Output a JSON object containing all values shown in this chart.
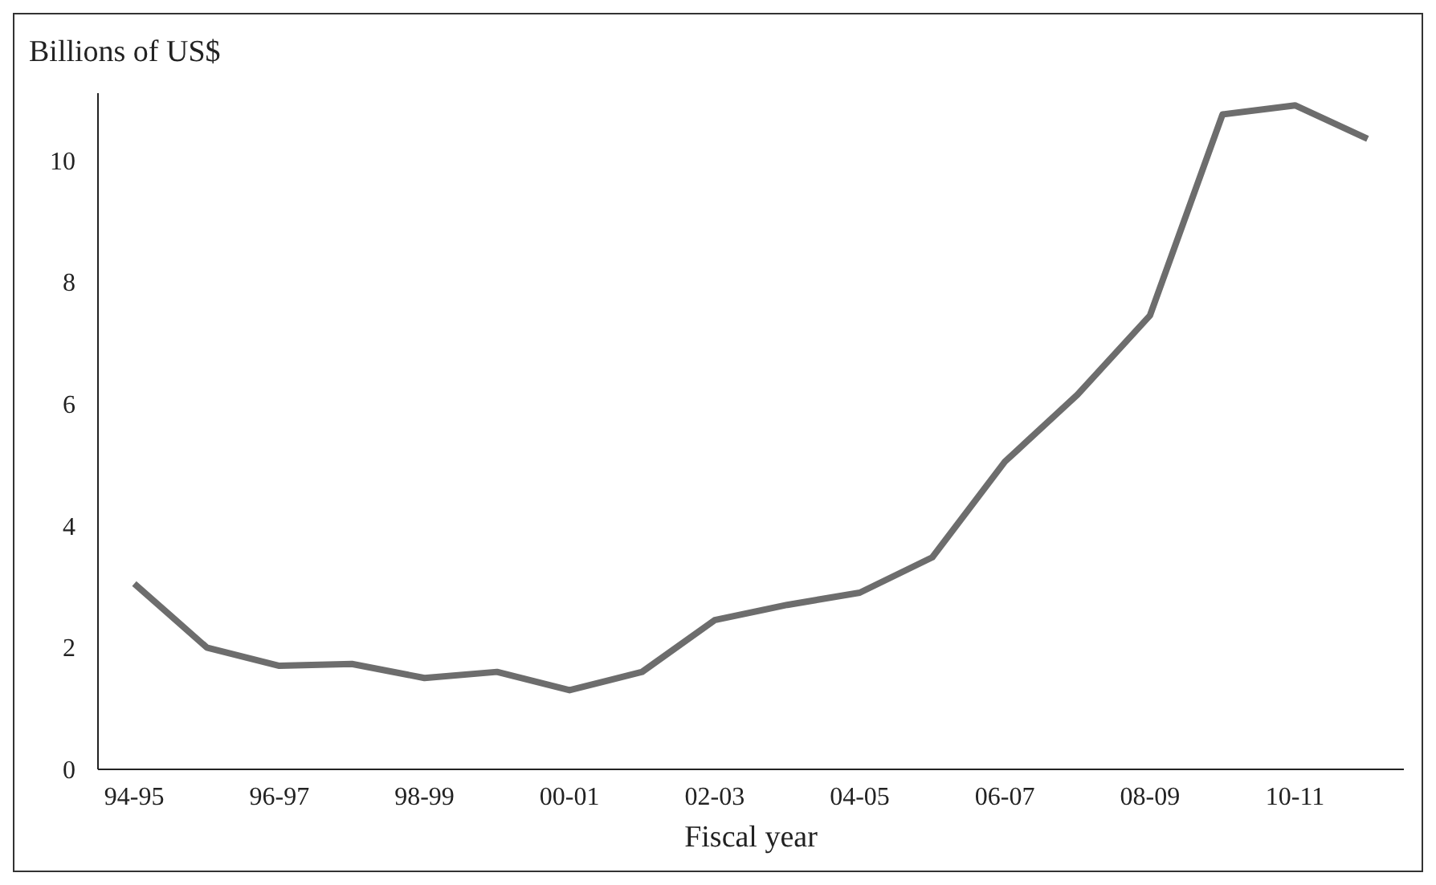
{
  "chart_data": {
    "type": "line",
    "ylabel": "Billions of US$",
    "xlabel": "Fiscal year",
    "categories": [
      "94-95",
      null,
      "96-97",
      null,
      "98-99",
      null,
      "00-01",
      null,
      "02-03",
      null,
      "04-05",
      null,
      "06-07",
      null,
      "08-09",
      null,
      "10-11",
      null
    ],
    "series": [
      {
        "color": "#6d6d6d",
        "values": [
          3.05,
          2.0,
          1.7,
          1.73,
          1.5,
          1.6,
          1.3,
          1.6,
          2.45,
          2.7,
          2.9,
          3.48,
          5.05,
          6.15,
          7.45,
          10.75,
          10.9,
          10.35
        ]
      }
    ],
    "ylim": [
      0,
      11.1
    ],
    "yticks": [
      0,
      2,
      4,
      6,
      8,
      10
    ],
    "grid": false,
    "marker": "none",
    "line_style": "solid"
  }
}
